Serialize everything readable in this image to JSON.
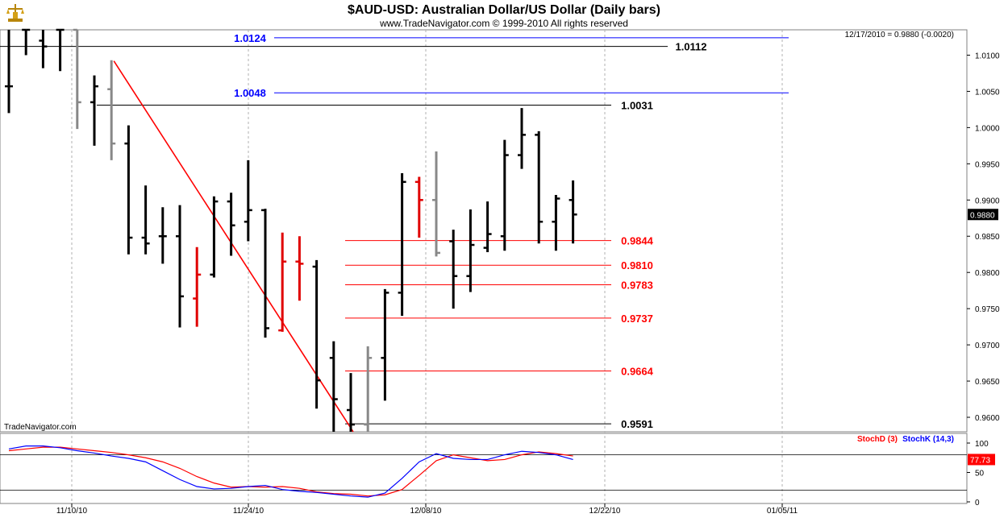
{
  "chart_data": [
    {
      "type": "ohlc_bar",
      "title": "$AUD-USD:  Australian Dollar/US Dollar  (Daily bars)",
      "subtitle": "www.TradeNavigator.com © 1999-2010 All rights reserved",
      "last_readout": "12/17/2010 = 0.9880 (-0.0020)",
      "last_price_tag": "0.9880",
      "watermark": "TradeNavigator.com",
      "y_ticks": [
        "1.0100",
        "1.0050",
        "1.0000",
        "0.9950",
        "0.9900",
        "0.9850",
        "0.9800",
        "0.9750",
        "0.9700",
        "0.9650",
        "0.9600"
      ],
      "x_ticks": [
        "11/10/10",
        "11/24/10",
        "12/08/10",
        "12/22/10",
        "01/05/11"
      ],
      "ylim": [
        0.958,
        1.0135
      ],
      "bars": [
        {
          "x": 0,
          "open": 1.0057,
          "high": 1.014,
          "low": 1.002,
          "close": 1.0057,
          "color": "black"
        },
        {
          "x": 1,
          "open": 1.0135,
          "high": 1.014,
          "low": 1.01,
          "close": 1.0135,
          "color": "black"
        },
        {
          "x": 2,
          "open": 1.012,
          "high": 1.014,
          "low": 1.0082,
          "close": 1.0112,
          "color": "black"
        },
        {
          "x": 3,
          "open": 1.0135,
          "high": 1.014,
          "low": 1.0078,
          "close": 1.0135,
          "color": "black"
        },
        {
          "x": 4,
          "open": 1.0135,
          "high": 1.014,
          "low": 0.9998,
          "close": 1.0035,
          "color": "gray"
        },
        {
          "x": 5,
          "open": 1.0035,
          "high": 1.0072,
          "low": 0.9975,
          "close": 1.0057,
          "color": "black"
        },
        {
          "x": 6,
          "open": 1.0053,
          "high": 1.0093,
          "low": 0.9955,
          "close": 0.9978,
          "color": "gray"
        },
        {
          "x": 7,
          "open": 0.9978,
          "high": 1.0003,
          "low": 0.9825,
          "close": 0.9848,
          "color": "black"
        },
        {
          "x": 8,
          "open": 0.9848,
          "high": 0.992,
          "low": 0.9825,
          "close": 0.984,
          "color": "black"
        },
        {
          "x": 9,
          "open": 0.985,
          "high": 0.989,
          "low": 0.9812,
          "close": 0.985,
          "color": "black"
        },
        {
          "x": 10,
          "open": 0.985,
          "high": 0.9893,
          "low": 0.9724,
          "close": 0.9767,
          "color": "black"
        },
        {
          "x": 11,
          "open": 0.9764,
          "high": 0.9835,
          "low": 0.9725,
          "close": 0.9797,
          "color": "red"
        },
        {
          "x": 12,
          "open": 0.9797,
          "high": 0.9905,
          "low": 0.9793,
          "close": 0.9898,
          "color": "black"
        },
        {
          "x": 13,
          "open": 0.9898,
          "high": 0.991,
          "low": 0.9823,
          "close": 0.9865,
          "color": "black"
        },
        {
          "x": 14,
          "open": 0.987,
          "high": 0.9955,
          "low": 0.9843,
          "close": 0.9886,
          "color": "black"
        },
        {
          "x": 15,
          "open": 0.9886,
          "high": 0.9888,
          "low": 0.971,
          "close": 0.9723,
          "color": "black"
        },
        {
          "x": 16,
          "open": 0.972,
          "high": 0.9855,
          "low": 0.9718,
          "close": 0.9815,
          "color": "red"
        },
        {
          "x": 17,
          "open": 0.9815,
          "high": 0.985,
          "low": 0.9761,
          "close": 0.9812,
          "color": "red"
        },
        {
          "x": 18,
          "open": 0.9808,
          "high": 0.9817,
          "low": 0.9612,
          "close": 0.9651,
          "color": "black"
        },
        {
          "x": 19,
          "open": 0.9682,
          "high": 0.9705,
          "low": 0.958,
          "close": 0.9625,
          "color": "black"
        },
        {
          "x": 20,
          "open": 0.961,
          "high": 0.9661,
          "low": 0.958,
          "close": 0.959,
          "color": "black"
        },
        {
          "x": 21,
          "open": 0.959,
          "high": 0.9698,
          "low": 0.958,
          "close": 0.9682,
          "color": "gray"
        },
        {
          "x": 22,
          "open": 0.9682,
          "high": 0.9777,
          "low": 0.9623,
          "close": 0.9772,
          "color": "black"
        },
        {
          "x": 23,
          "open": 0.9772,
          "high": 0.9937,
          "low": 0.974,
          "close": 0.9925,
          "color": "black"
        },
        {
          "x": 24,
          "open": 0.9925,
          "high": 0.9932,
          "low": 0.9848,
          "close": 0.99,
          "color": "red"
        },
        {
          "x": 25,
          "open": 0.99,
          "high": 0.9967,
          "low": 0.9822,
          "close": 0.9827,
          "color": "gray"
        },
        {
          "x": 26,
          "open": 0.9843,
          "high": 0.9859,
          "low": 0.975,
          "close": 0.9795,
          "color": "black"
        },
        {
          "x": 27,
          "open": 0.9795,
          "high": 0.9887,
          "low": 0.9773,
          "close": 0.9838,
          "color": "black"
        },
        {
          "x": 28,
          "open": 0.9834,
          "high": 0.9898,
          "low": 0.9828,
          "close": 0.9853,
          "color": "black"
        },
        {
          "x": 29,
          "open": 0.985,
          "high": 0.9983,
          "low": 0.983,
          "close": 0.9962,
          "color": "black"
        },
        {
          "x": 30,
          "open": 0.9962,
          "high": 1.0027,
          "low": 0.9943,
          "close": 0.999,
          "color": "black"
        },
        {
          "x": 31,
          "open": 0.999,
          "high": 0.9995,
          "low": 0.984,
          "close": 0.987,
          "color": "black"
        },
        {
          "x": 32,
          "open": 0.987,
          "high": 0.9907,
          "low": 0.983,
          "close": 0.9902,
          "color": "black"
        },
        {
          "x": 33,
          "open": 0.99,
          "high": 0.9927,
          "low": 0.984,
          "close": 0.988,
          "color": "black"
        }
      ],
      "levels": [
        {
          "value": 1.0124,
          "label": "1.0124",
          "color": "#0000ff"
        },
        {
          "value": 1.0112,
          "label": "1.0112",
          "color": "#000000"
        },
        {
          "value": 1.0048,
          "label": "1.0048",
          "color": "#0000ff"
        },
        {
          "value": 1.0031,
          "label": "1.0031",
          "color": "#000000"
        },
        {
          "value": 0.9844,
          "label": "0.9844",
          "color": "#ff0000"
        },
        {
          "value": 0.981,
          "label": "0.9810",
          "color": "#ff0000"
        },
        {
          "value": 0.9783,
          "label": "0.9783",
          "color": "#ff0000"
        },
        {
          "value": 0.9737,
          "label": "0.9737",
          "color": "#ff0000"
        },
        {
          "value": 0.9664,
          "label": "0.9664",
          "color": "#ff0000"
        },
        {
          "value": 0.9591,
          "label": "0.9591",
          "color": "#000000"
        }
      ],
      "trendline": {
        "from": {
          "x": 6,
          "y": 1.0092
        },
        "to": {
          "x": 20,
          "y": 0.958
        },
        "color": "#ff0000"
      }
    },
    {
      "type": "line",
      "ylim": [
        0,
        100
      ],
      "y_ticks": [
        "100",
        "50",
        "0"
      ],
      "last_value_tag": "77.73",
      "ref_lines": [
        80,
        20
      ],
      "legend": [
        {
          "name": "StochD (3)",
          "color": "#ff0000"
        },
        {
          "name": "StochK (14,3)",
          "color": "#0000ff"
        }
      ],
      "series": [
        {
          "name": "StochD (3)",
          "color": "#ff0000",
          "values": [
            87,
            90,
            93,
            93,
            90,
            87,
            84,
            80,
            75,
            68,
            57,
            43,
            32,
            25,
            26,
            25,
            26,
            23,
            17,
            14,
            13,
            10,
            12,
            21,
            45,
            70,
            80,
            75,
            70,
            72,
            80,
            85,
            82,
            78
          ]
        },
        {
          "name": "StochK (14,3)",
          "color": "#0000ff",
          "values": [
            90,
            95,
            95,
            92,
            87,
            83,
            78,
            74,
            68,
            53,
            38,
            26,
            22,
            23,
            26,
            28,
            21,
            18,
            16,
            13,
            10,
            8,
            15,
            40,
            68,
            82,
            74,
            72,
            72,
            80,
            86,
            84,
            80,
            72
          ]
        }
      ]
    }
  ]
}
